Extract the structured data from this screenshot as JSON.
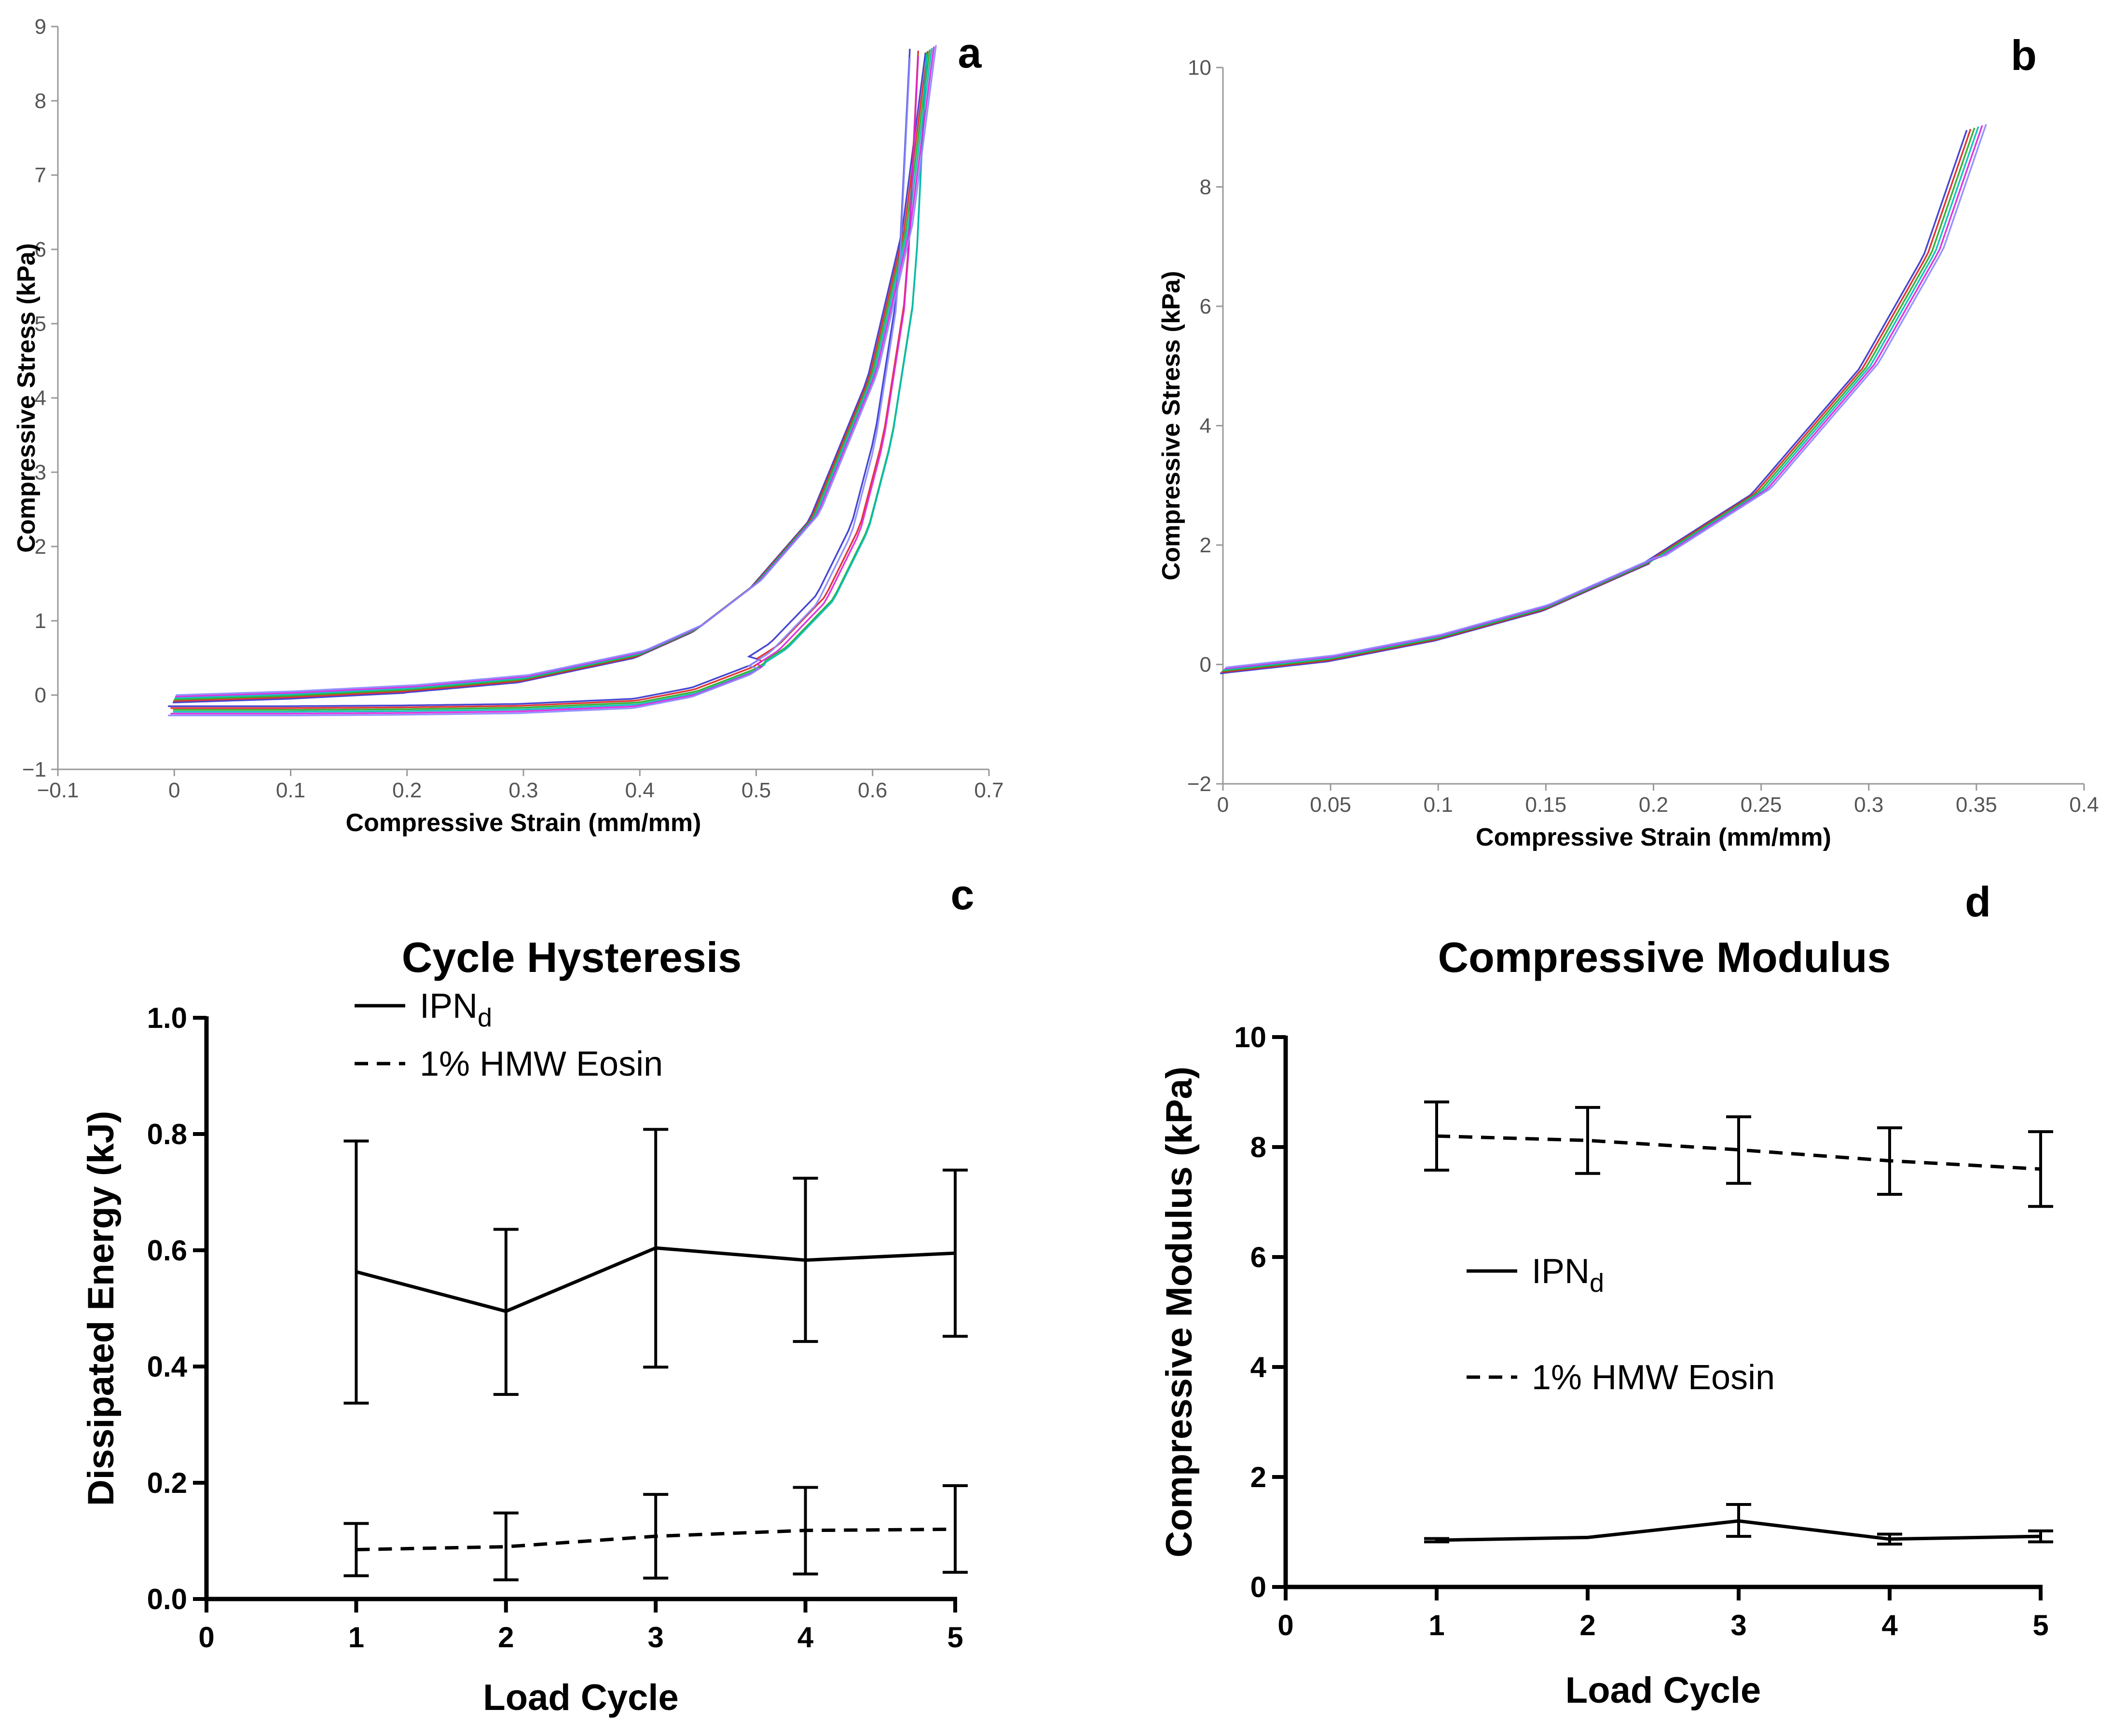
{
  "chart_data": [
    {
      "id": "a",
      "type": "line",
      "panel_label": "a",
      "title": "",
      "xlabel": "Compressive Strain (mm/mm)",
      "ylabel": "Compressive Stress (kPa)",
      "xlim": [
        -0.1,
        0.7
      ],
      "ylim": [
        -1,
        9
      ],
      "xticks": [
        "−0.1",
        "0",
        "0.1",
        "0.2",
        "0.3",
        "0.4",
        "0.5",
        "0.6",
        "0.7"
      ],
      "yticks": [
        "−1",
        "0",
        "1",
        "2",
        "3",
        "4",
        "5",
        "6",
        "7",
        "8",
        "9"
      ],
      "grid": false,
      "description_colors": [
        "#3333cc",
        "#dd2222",
        "#22aa22",
        "#00bbbb",
        "#dd22dd",
        "#8888ff"
      ],
      "loading_peak": {
        "strain": 0.65,
        "stress": 8.7
      },
      "series_curves": {
        "loading": [
          [
            0,
            -0.05
          ],
          [
            0.1,
            0.0
          ],
          [
            0.2,
            0.08
          ],
          [
            0.3,
            0.22
          ],
          [
            0.4,
            0.55
          ],
          [
            0.45,
            0.9
          ],
          [
            0.5,
            1.5
          ],
          [
            0.55,
            2.4
          ],
          [
            0.6,
            4.3
          ],
          [
            0.63,
            6.3
          ],
          [
            0.65,
            8.7
          ]
        ],
        "unloading": [
          [
            0.65,
            8.7
          ],
          [
            0.64,
            5.5
          ],
          [
            0.62,
            3.5
          ],
          [
            0.6,
            2.3
          ],
          [
            0.57,
            1.35
          ],
          [
            0.53,
            0.7
          ],
          [
            0.5,
            0.4
          ],
          [
            0.45,
            0.1
          ],
          [
            0.4,
            -0.05
          ],
          [
            0.3,
            -0.12
          ],
          [
            0.2,
            -0.14
          ],
          [
            0.1,
            -0.15
          ],
          [
            0,
            -0.15
          ]
        ]
      }
    },
    {
      "id": "b",
      "type": "line",
      "panel_label": "b",
      "title": "",
      "xlabel": "Compressive Strain (mm/mm)",
      "ylabel": "Compressive Stress (kPa)",
      "xlim": [
        0,
        0.4
      ],
      "ylim": [
        -2,
        10
      ],
      "xticks": [
        "0",
        "0.05",
        "0.1",
        "0.15",
        "0.2",
        "0.25",
        "0.3",
        "0.35",
        "0.4"
      ],
      "yticks": [
        "−2",
        "0",
        "2",
        "4",
        "6",
        "8",
        "10"
      ],
      "grid": false,
      "description_colors": [
        "#3333cc",
        "#dd2222",
        "#22aa22",
        "#00bbbb",
        "#dd22dd",
        "#8888ff"
      ],
      "series_curves": {
        "loading": [
          [
            0,
            -0.1
          ],
          [
            0.05,
            0.1
          ],
          [
            0.1,
            0.45
          ],
          [
            0.15,
            0.95
          ],
          [
            0.2,
            1.75
          ],
          [
            0.25,
            2.9
          ],
          [
            0.3,
            5.0
          ],
          [
            0.33,
            6.9
          ],
          [
            0.35,
            9.0
          ]
        ]
      }
    },
    {
      "id": "c",
      "type": "line",
      "panel_label": "c",
      "title": "Cycle Hysteresis",
      "xlabel": "Load Cycle",
      "ylabel": "Dissipated Energy (kJ)",
      "xlim": [
        0,
        5
      ],
      "ylim": [
        0,
        1.0
      ],
      "xticks": [
        "0",
        "1",
        "2",
        "3",
        "4",
        "5"
      ],
      "yticks": [
        "0.0",
        "0.2",
        "0.4",
        "0.6",
        "0.8",
        "1.0"
      ],
      "grid": false,
      "legend_position": "top-left",
      "categories": [
        1,
        2,
        3,
        4,
        5
      ],
      "series": [
        {
          "name": "IPN",
          "name_sub": "d",
          "style": "solid",
          "values": [
            0.563,
            0.495,
            0.604,
            0.583,
            0.595
          ],
          "error_low": [
            0.337,
            0.352,
            0.399,
            0.443,
            0.452
          ],
          "error_high": [
            0.788,
            0.636,
            0.808,
            0.724,
            0.738
          ]
        },
        {
          "name": "1% HMW Eosin",
          "style": "dashed",
          "values": [
            0.085,
            0.09,
            0.108,
            0.118,
            0.12
          ],
          "error_low": [
            0.04,
            0.033,
            0.036,
            0.043,
            0.046
          ],
          "error_high": [
            0.13,
            0.148,
            0.18,
            0.192,
            0.195
          ]
        }
      ]
    },
    {
      "id": "d",
      "type": "line",
      "panel_label": "d",
      "title": "Compressive Modulus",
      "xlabel": "Load Cycle",
      "ylabel": "Compressive Modulus (kPa)",
      "xlim": [
        0,
        5
      ],
      "ylim": [
        0,
        10
      ],
      "xticks": [
        "0",
        "1",
        "2",
        "3",
        "4",
        "5"
      ],
      "yticks": [
        "0",
        "2",
        "4",
        "6",
        "8",
        "10"
      ],
      "grid": false,
      "legend_position": "center",
      "categories": [
        1,
        2,
        3,
        4,
        5
      ],
      "series": [
        {
          "name": "IPN",
          "name_sub": "d",
          "style": "solid",
          "values": [
            0.85,
            0.9,
            1.2,
            0.87,
            0.92
          ],
          "error_low": [
            0.82,
            0.9,
            0.92,
            0.78,
            0.82
          ],
          "error_high": [
            0.88,
            0.9,
            1.5,
            0.96,
            1.02
          ]
        },
        {
          "name": "1% HMW Eosin",
          "style": "dashed",
          "values": [
            8.2,
            8.12,
            7.95,
            7.75,
            7.6
          ],
          "error_low": [
            7.58,
            7.52,
            7.34,
            7.14,
            6.92
          ],
          "error_high": [
            8.82,
            8.72,
            8.55,
            8.35,
            8.28
          ]
        }
      ]
    }
  ]
}
